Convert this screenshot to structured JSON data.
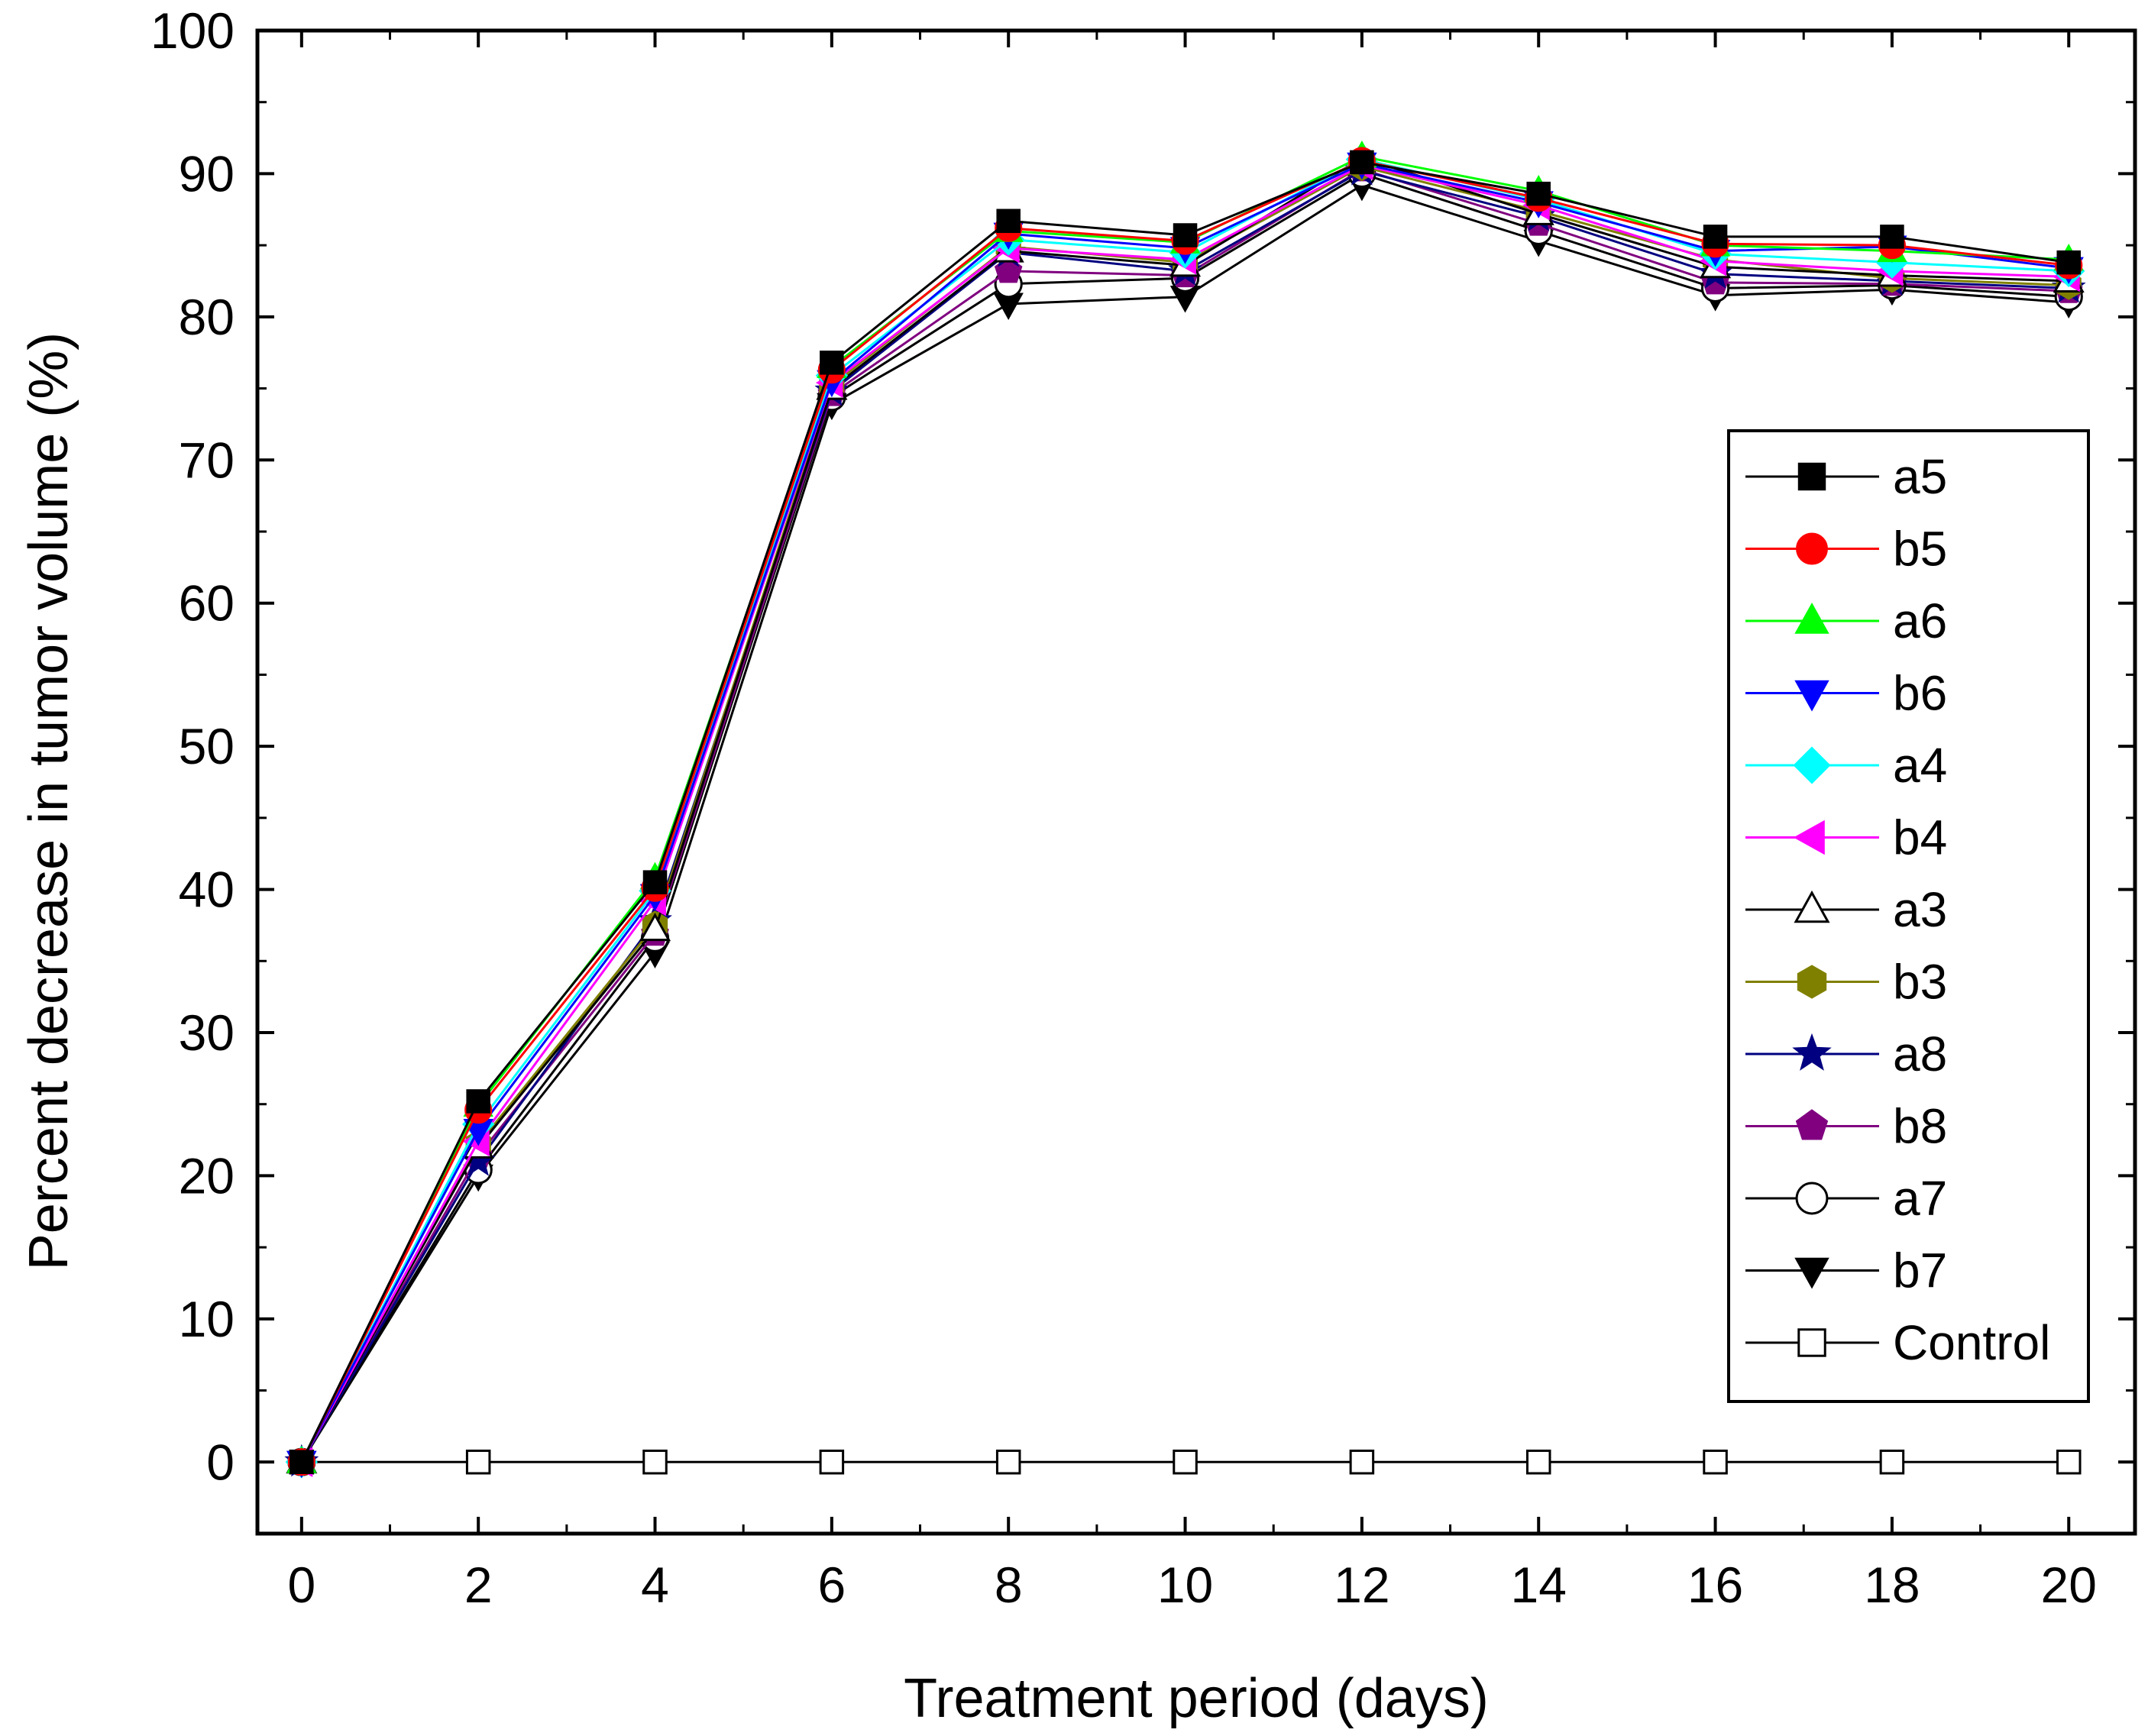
{
  "chart_data": {
    "type": "line",
    "title": "",
    "xlabel": "Treatment period (days)",
    "ylabel": "Percent decrease in tumor volume (%)",
    "xlim": [
      -0.5,
      20.75
    ],
    "ylim": [
      -5,
      100
    ],
    "x_ticks": [
      0,
      2,
      4,
      6,
      8,
      10,
      12,
      14,
      16,
      18,
      20
    ],
    "y_ticks": [
      0,
      10,
      20,
      30,
      40,
      50,
      60,
      70,
      80,
      90,
      100
    ],
    "grid": false,
    "legend_position": "right",
    "x": [
      0,
      2,
      4,
      6,
      8,
      10,
      12,
      14,
      16,
      18,
      20
    ],
    "series": [
      {
        "name": "a5",
        "color": "#000000",
        "line_color": "#000000",
        "marker": "square",
        "filled": true,
        "values": [
          0,
          25.2,
          40.5,
          76.8,
          86.7,
          85.7,
          90.8,
          88.6,
          85.6,
          85.6,
          83.8
        ]
      },
      {
        "name": "b5",
        "color": "#ff0000",
        "line_color": "#ff0000",
        "marker": "circle",
        "filled": true,
        "values": [
          0,
          24.6,
          40.1,
          76.3,
          86.2,
          85.3,
          90.9,
          88.3,
          85.1,
          85.0,
          83.6
        ]
      },
      {
        "name": "a6",
        "color": "#00ff00",
        "line_color": "#00ff00",
        "marker": "triangle-up",
        "filled": true,
        "values": [
          0,
          24.9,
          40.8,
          76.5,
          86.0,
          85.2,
          91.2,
          88.8,
          85.0,
          84.6,
          84.0
        ]
      },
      {
        "name": "b6",
        "color": "#0000ff",
        "line_color": "#0000ff",
        "marker": "triangle-down",
        "filled": true,
        "values": [
          0,
          23.2,
          39.6,
          75.5,
          85.8,
          84.8,
          90.7,
          88.0,
          84.6,
          84.9,
          83.4
        ]
      },
      {
        "name": "a4",
        "color": "#00ffff",
        "line_color": "#00ffff",
        "marker": "diamond",
        "filled": true,
        "values": [
          0,
          23.6,
          39.9,
          75.9,
          85.4,
          84.5,
          91.0,
          88.2,
          84.4,
          83.8,
          83.2
        ]
      },
      {
        "name": "b4",
        "color": "#ff00ff",
        "line_color": "#ff00ff",
        "marker": "triangle-left",
        "filled": true,
        "values": [
          0,
          22.4,
          39.2,
          75.4,
          84.8,
          84.0,
          90.6,
          87.8,
          83.9,
          83.2,
          82.8
        ]
      },
      {
        "name": "a3",
        "color": "#000000",
        "line_color": "#000000",
        "marker": "triangle-up",
        "filled": false,
        "values": [
          0,
          22.0,
          37.2,
          75.0,
          84.6,
          83.6,
          91.1,
          87.2,
          83.5,
          82.9,
          82.5
        ]
      },
      {
        "name": "b3",
        "color": "#808000",
        "line_color": "#808000",
        "marker": "hexagon",
        "filled": true,
        "values": [
          0,
          22.2,
          37.5,
          75.2,
          84.9,
          83.8,
          90.5,
          87.4,
          84.0,
          82.7,
          82.2
        ]
      },
      {
        "name": "a8",
        "color": "#000080",
        "line_color": "#000080",
        "marker": "star",
        "filled": true,
        "values": [
          0,
          21.0,
          37.8,
          74.8,
          84.5,
          83.2,
          90.2,
          87.0,
          83.0,
          82.5,
          82.0
        ]
      },
      {
        "name": "b8",
        "color": "#800080",
        "line_color": "#800080",
        "marker": "pentagon",
        "filled": true,
        "values": [
          0,
          21.4,
          36.9,
          74.6,
          83.2,
          82.9,
          90.3,
          86.5,
          82.4,
          82.3,
          81.8
        ]
      },
      {
        "name": "a7",
        "color": "#000000",
        "line_color": "#000000",
        "marker": "circle",
        "filled": false,
        "values": [
          0,
          20.4,
          36.6,
          74.4,
          82.3,
          82.7,
          90.0,
          86.0,
          82.0,
          82.2,
          81.4
        ]
      },
      {
        "name": "b7",
        "color": "#000000",
        "line_color": "#000000",
        "marker": "triangle-down",
        "filled": true,
        "values": [
          0,
          20.0,
          35.6,
          73.9,
          80.9,
          81.4,
          89.2,
          85.3,
          81.5,
          81.9,
          81.0
        ]
      },
      {
        "name": "Control",
        "color": "#000000",
        "line_color": "#000000",
        "marker": "square",
        "filled": false,
        "values": [
          0,
          0,
          0,
          0,
          0,
          0,
          0,
          0,
          0,
          0,
          0
        ]
      }
    ]
  }
}
